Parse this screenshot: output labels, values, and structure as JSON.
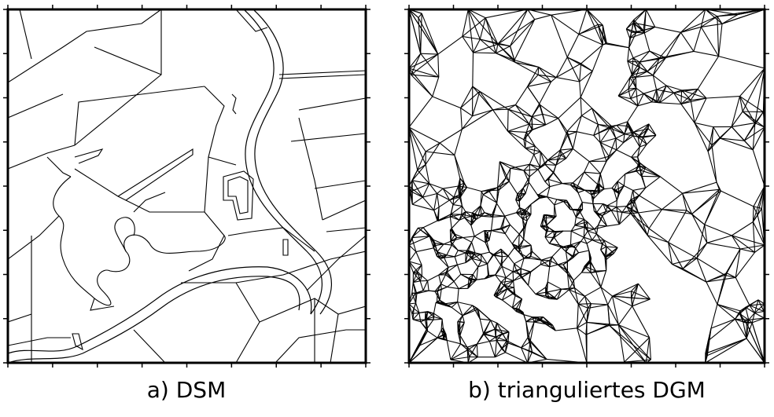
{
  "figure": {
    "panels": [
      {
        "caption": "a) DSM"
      },
      {
        "caption": "b) trianguliertes DGM"
      }
    ]
  }
}
